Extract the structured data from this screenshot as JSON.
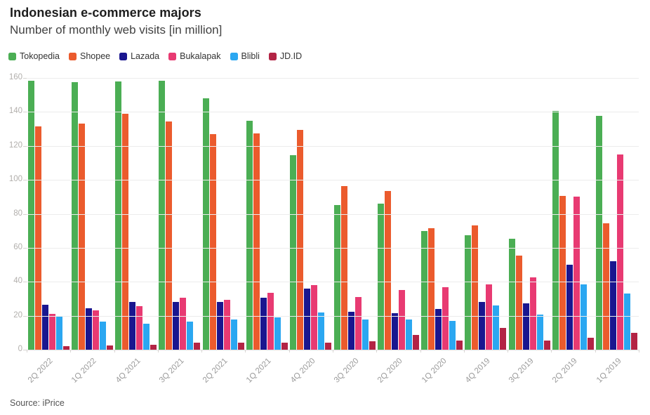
{
  "header": {
    "title": "Indonesian e-commerce majors",
    "subtitle": "Number of monthly web visits [in million]"
  },
  "source": "Source: iPrice",
  "chart_data": {
    "type": "bar",
    "title": "Indonesian e-commerce majors",
    "subtitle": "Number of monthly web visits [in million]",
    "xlabel": "",
    "ylabel": "",
    "ylim": [
      0,
      160
    ],
    "ytick_step": 20,
    "ytick_labels": [
      "0",
      "20",
      "40",
      "60",
      "80",
      "100",
      "120",
      "140",
      "160"
    ],
    "grid": true,
    "legend_position": "top-left",
    "categories": [
      "2Q 2022",
      "1Q 2022",
      "4Q 2021",
      "3Q 2021",
      "2Q 2021",
      "1Q 2021",
      "4Q 2020",
      "3Q 2020",
      "2Q 2020",
      "1Q 2020",
      "4Q 2019",
      "3Q 2019",
      "2Q 2019",
      "1Q 2019"
    ],
    "series": [
      {
        "name": "Tokopedia",
        "color": "#4BAE54",
        "values": [
          158.5,
          157.5,
          158,
          158.5,
          148,
          135,
          114.5,
          85,
          86,
          70,
          67.5,
          65.5,
          140.5,
          137.5
        ]
      },
      {
        "name": "Shopee",
        "color": "#EB5B2D",
        "values": [
          131.5,
          133,
          139,
          134.5,
          127,
          127.5,
          129.5,
          96.5,
          93.5,
          71.5,
          73,
          55.5,
          90.5,
          74.5
        ]
      },
      {
        "name": "Lazada",
        "color": "#1A168F",
        "values": [
          26.5,
          24.5,
          28,
          28,
          28,
          30.5,
          36,
          22.5,
          21.5,
          24,
          28,
          27.5,
          50,
          52
        ]
      },
      {
        "name": "Bukalapak",
        "color": "#E83A72",
        "values": [
          21,
          23,
          25.5,
          30.5,
          29.5,
          33.5,
          38,
          31,
          35,
          37,
          38.5,
          42.5,
          90,
          115
        ]
      },
      {
        "name": "Blibli",
        "color": "#2BA7F1",
        "values": [
          20,
          16.5,
          15.5,
          16.5,
          18,
          19,
          22,
          18,
          18,
          17,
          26,
          20.5,
          38.5,
          33
        ]
      },
      {
        "name": "JD.ID",
        "color": "#B32445",
        "values": [
          2,
          2.5,
          3,
          4,
          4,
          4,
          4,
          5,
          8.5,
          5.5,
          13,
          5.5,
          7,
          10
        ]
      }
    ]
  }
}
